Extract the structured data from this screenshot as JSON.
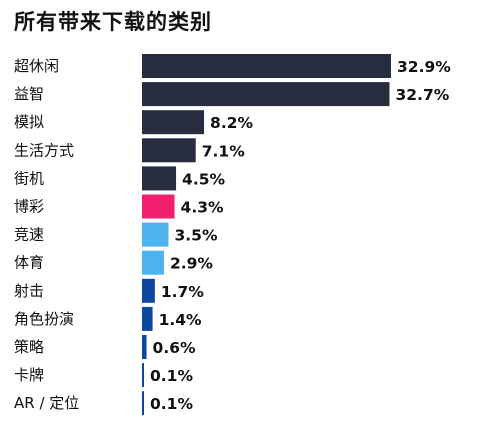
{
  "chart_data": {
    "type": "bar",
    "orientation": "horizontal",
    "title": "所有带来下载的类别",
    "categories": [
      "超休闲",
      "益智",
      "模拟",
      "生活方式",
      "街机",
      "博彩",
      "竞速",
      "体育",
      "射击",
      "角色扮演",
      "策略",
      "卡牌",
      "AR / 定位"
    ],
    "values": [
      32.9,
      32.7,
      8.2,
      7.1,
      4.5,
      4.3,
      3.5,
      2.9,
      1.7,
      1.4,
      0.6,
      0.1,
      0.1
    ],
    "value_labels": [
      "32.9%",
      "32.7%",
      "8.2%",
      "7.1%",
      "4.5%",
      "4.3%",
      "3.5%",
      "2.9%",
      "1.7%",
      "1.4%",
      "0.6%",
      "0.1%",
      "0.1%"
    ],
    "colors": [
      "#272d3f",
      "#272d3f",
      "#272d3f",
      "#272d3f",
      "#272d3f",
      "#f2206f",
      "#4db3ef",
      "#4db3ef",
      "#0d47a1",
      "#0d47a1",
      "#0d47a1",
      "#0d47a1",
      "#0d47a1"
    ],
    "xlabel": "",
    "ylabel": "",
    "xlim": [
      0,
      32.9
    ],
    "grid": false,
    "legend": "none"
  }
}
